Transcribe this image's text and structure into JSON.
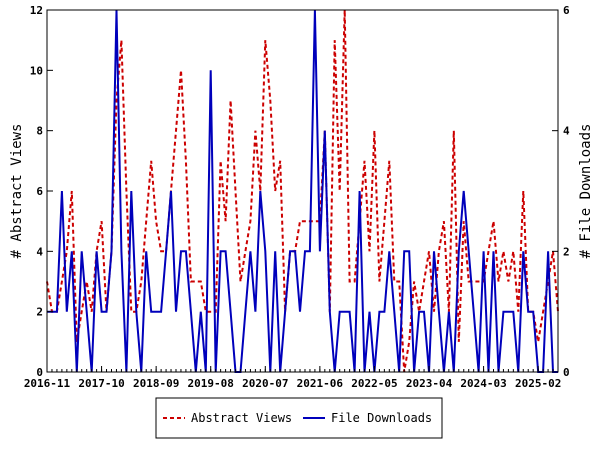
{
  "chart_data": {
    "type": "line",
    "ylabel_left": "# Abstract Views",
    "ylabel_right": "# File Downloads",
    "ylim_left": [
      0,
      12
    ],
    "ylim_right": [
      0,
      6
    ],
    "left_ticks": [
      "0",
      "2",
      "4",
      "6",
      "8",
      "10",
      "12"
    ],
    "right_ticks": [
      "0",
      "2",
      "4",
      "6"
    ],
    "x_tick_labels": [
      "2016-11",
      "2017-10",
      "2018-09",
      "2019-08",
      "2020-07",
      "2021-06",
      "2022-05",
      "2023-04",
      "2024-03",
      "2025-02"
    ],
    "x_tick_positions": [
      0,
      11,
      22,
      33,
      44,
      55,
      66,
      77,
      88,
      99
    ],
    "x_range": [
      0,
      103
    ],
    "legend_position": "bottom-center",
    "series": [
      {
        "name": "Abstract Views",
        "axis": "left",
        "color": "#cc0000",
        "style": "dashed",
        "values": [
          3,
          2,
          2,
          3,
          4,
          6,
          1,
          2,
          3,
          2,
          4,
          5,
          2,
          4,
          9,
          11,
          6,
          2,
          2,
          3,
          5,
          7,
          5,
          4,
          4,
          6,
          8,
          10,
          7,
          3,
          3,
          3,
          2,
          2,
          2,
          7,
          5,
          9,
          6,
          3,
          4,
          5,
          8,
          6,
          11,
          9,
          6,
          7,
          2,
          4,
          4,
          5,
          5,
          5,
          5,
          5,
          8,
          2,
          11,
          6,
          12,
          3,
          3,
          5,
          7,
          4,
          8,
          3,
          5,
          7,
          3,
          3,
          0,
          1,
          3,
          2,
          3,
          4,
          2,
          4,
          5,
          2,
          8,
          1,
          5,
          3,
          3,
          3,
          3,
          4,
          5,
          3,
          4,
          3,
          4,
          2,
          6,
          2,
          2,
          1,
          2,
          3,
          4,
          2
        ]
      },
      {
        "name": "File Downloads",
        "axis": "right",
        "color": "#0000bb",
        "style": "solid",
        "values": [
          1,
          1,
          1,
          3,
          1,
          2,
          0,
          2,
          1,
          0,
          2,
          1,
          1,
          2,
          6,
          2,
          0,
          3,
          1,
          0,
          2,
          1,
          1,
          1,
          2,
          3,
          1,
          2,
          2,
          1,
          0,
          1,
          0,
          5,
          0,
          2,
          2,
          1,
          0,
          0,
          1,
          2,
          1,
          3,
          2,
          0,
          2,
          0,
          1,
          2,
          2,
          1,
          2,
          2,
          6,
          2,
          4,
          1,
          0,
          1,
          1,
          1,
          0,
          3,
          0,
          1,
          0,
          1,
          1,
          2,
          1,
          0,
          2,
          2,
          0,
          1,
          1,
          0,
          2,
          1,
          0,
          1,
          0,
          2,
          3,
          2,
          1,
          0,
          2,
          0,
          2,
          0,
          1,
          1,
          1,
          0,
          2,
          1,
          1,
          0,
          0,
          2,
          0,
          0
        ]
      }
    ]
  }
}
